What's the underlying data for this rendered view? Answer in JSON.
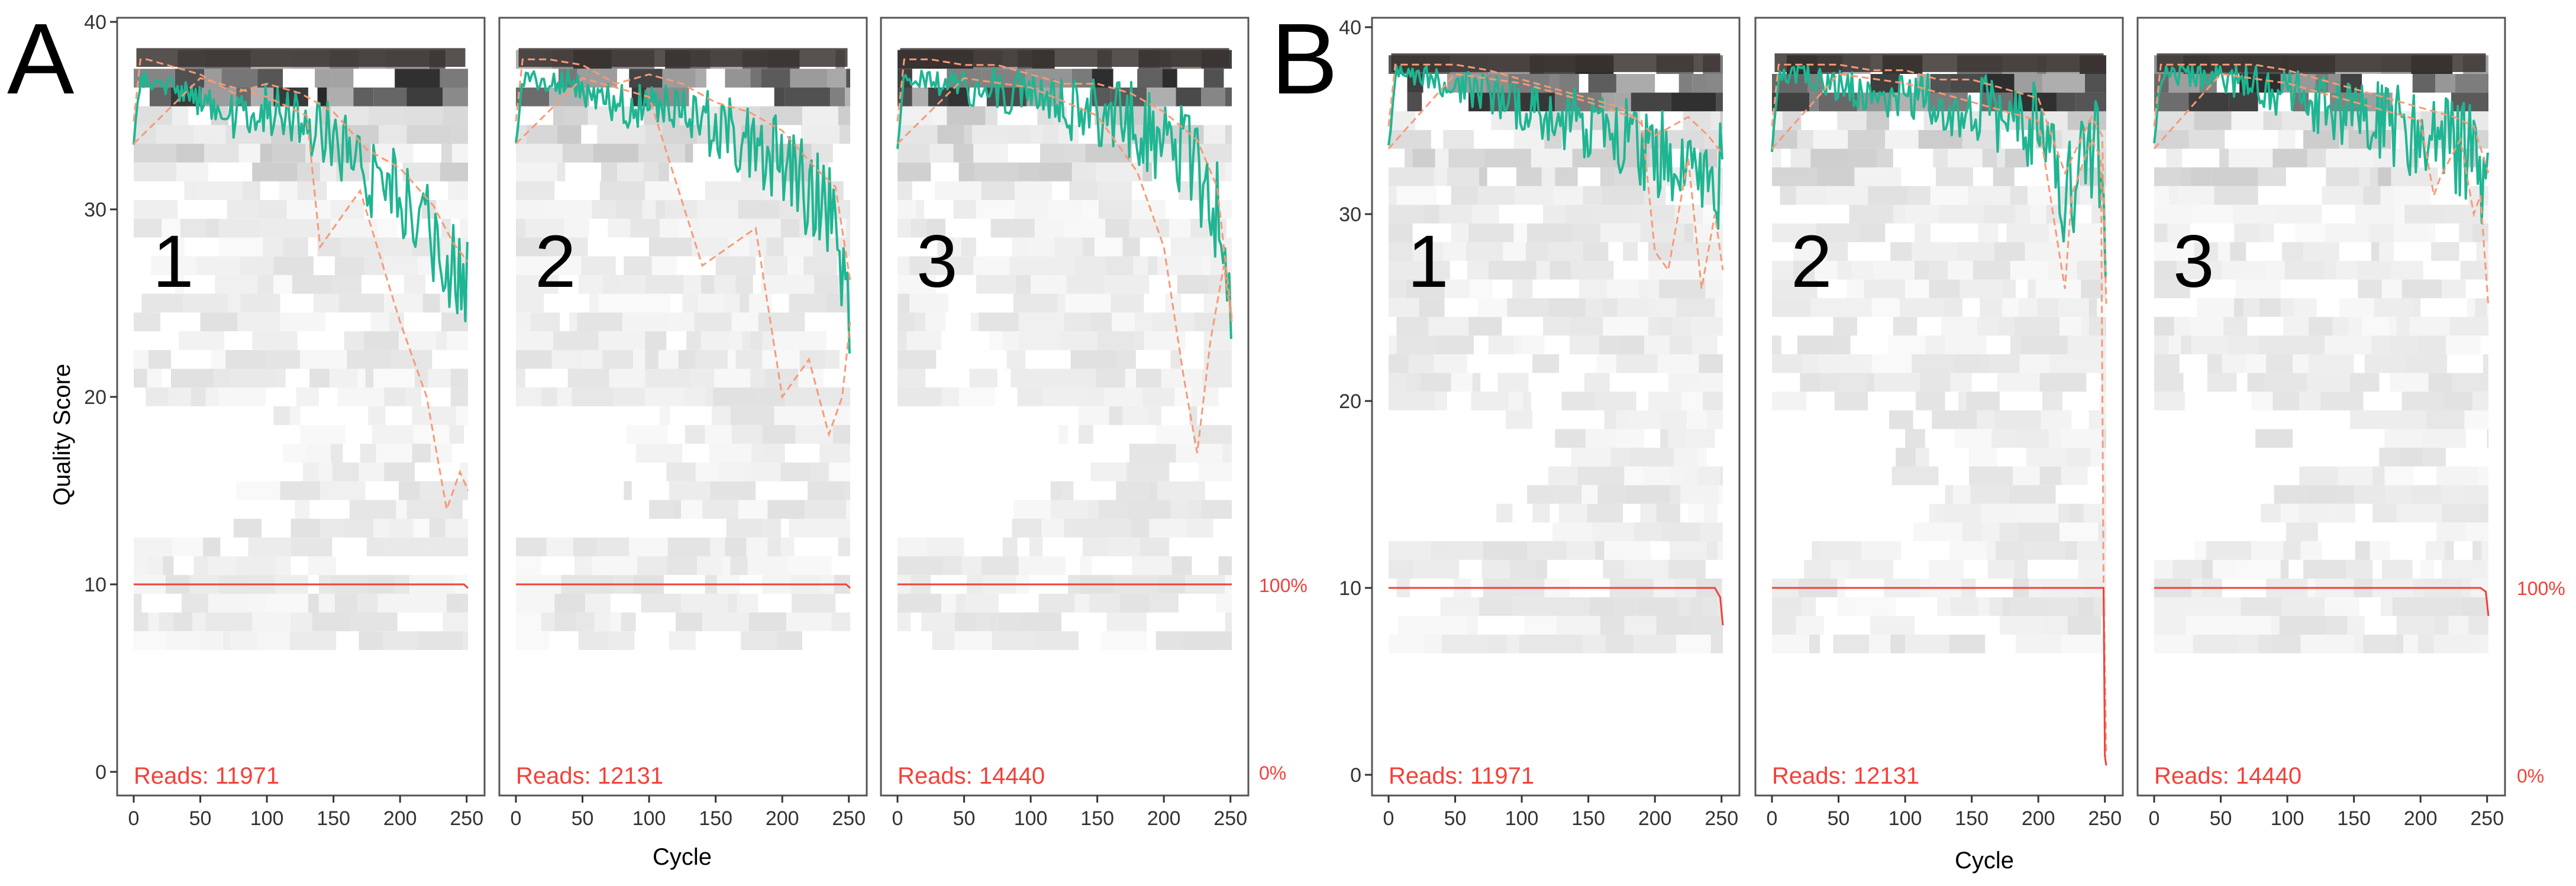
{
  "figure": {
    "panel_letters": [
      "A",
      "B"
    ],
    "y_axis_label": "Quality Score",
    "x_axis_label": "Cycle",
    "y_ticks": [
      "0",
      "10",
      "20",
      "30",
      "40"
    ],
    "x_ticks": [
      "0",
      "50",
      "100",
      "150",
      "200",
      "250"
    ],
    "right_labels": [
      "100%",
      "0%"
    ]
  },
  "colors": {
    "mean": "#1fb592",
    "quartile": "#f79a76",
    "cumulative": "#f2413a",
    "reads_text": "#f2413a",
    "frame": "#555555"
  },
  "chart_data": [
    {
      "type": "heatmap",
      "title": "",
      "group": "A",
      "panel_number": "1",
      "reads_label": "Reads:  11971",
      "xlabel": "Cycle",
      "ylabel": "Quality Score",
      "xlim": [
        0,
        251
      ],
      "ylim": [
        0,
        40
      ],
      "series": [
        {
          "name": "mean",
          "x": [
            0,
            5,
            10,
            25,
            50,
            75,
            100,
            125,
            150,
            175,
            200,
            225,
            240,
            251
          ],
          "values": [
            33.5,
            37,
            37,
            36.5,
            36,
            35,
            35.5,
            35,
            34,
            32,
            31,
            29,
            27,
            26
          ]
        },
        {
          "name": "quartile-min",
          "x": [
            0,
            50,
            100,
            130,
            140,
            170,
            200,
            220,
            235,
            245,
            251
          ],
          "values": [
            33.5,
            37,
            36,
            35,
            28,
            31,
            24,
            20,
            14,
            16,
            15
          ]
        },
        {
          "name": "cumulative",
          "x": [
            0,
            240,
            248,
            251
          ],
          "values": [
            10,
            10,
            10,
            9.8
          ]
        }
      ]
    },
    {
      "type": "heatmap",
      "title": "",
      "group": "A",
      "panel_number": "2",
      "reads_label": "Reads:  12131",
      "xlabel": "Cycle",
      "ylabel": "Quality Score",
      "xlim": [
        0,
        251
      ],
      "ylim": [
        0,
        40
      ],
      "series": [
        {
          "name": "mean",
          "x": [
            0,
            5,
            10,
            25,
            50,
            75,
            100,
            125,
            150,
            175,
            200,
            225,
            240,
            251
          ],
          "values": [
            33.5,
            37,
            37,
            37,
            36.5,
            35.5,
            36,
            35.5,
            34.5,
            34,
            33,
            31,
            30,
            25
          ]
        },
        {
          "name": "quartile-min",
          "x": [
            0,
            50,
            100,
            140,
            180,
            200,
            220,
            235,
            245,
            251
          ],
          "values": [
            33.5,
            37,
            36,
            27,
            29,
            20,
            22,
            18,
            20,
            24
          ]
        },
        {
          "name": "cumulative",
          "x": [
            0,
            240,
            248,
            251
          ],
          "values": [
            10,
            10,
            10,
            9.8
          ]
        }
      ]
    },
    {
      "type": "heatmap",
      "title": "",
      "group": "A",
      "panel_number": "3",
      "reads_label": "Reads:  14440",
      "xlabel": "Cycle",
      "ylabel": "Quality Score",
      "xlim": [
        0,
        251
      ],
      "ylim": [
        0,
        40
      ],
      "series": [
        {
          "name": "mean",
          "x": [
            0,
            5,
            10,
            25,
            50,
            75,
            100,
            125,
            150,
            175,
            200,
            225,
            240,
            251
          ],
          "values": [
            33.5,
            37,
            37,
            37,
            36.5,
            36.5,
            36,
            35.5,
            35.5,
            35,
            34,
            32.5,
            30,
            23
          ]
        },
        {
          "name": "quartile-min",
          "x": [
            0,
            50,
            100,
            150,
            180,
            200,
            215,
            225,
            235,
            245,
            251
          ],
          "values": [
            33.5,
            37,
            36.5,
            35,
            32,
            28,
            21,
            17,
            23,
            27,
            24
          ]
        },
        {
          "name": "cumulative",
          "x": [
            0,
            240,
            248,
            251
          ],
          "values": [
            10,
            10,
            10,
            10
          ]
        }
      ]
    },
    {
      "type": "heatmap",
      "title": "",
      "group": "B",
      "panel_number": "1",
      "reads_label": "Reads:  11971",
      "xlabel": "Cycle",
      "ylabel": "",
      "xlim": [
        0,
        251
      ],
      "ylim": [
        0,
        40
      ],
      "series": [
        {
          "name": "mean",
          "x": [
            0,
            5,
            10,
            25,
            50,
            75,
            100,
            125,
            150,
            175,
            200,
            225,
            240,
            251
          ],
          "values": [
            33.5,
            37.5,
            37.5,
            37.5,
            37,
            36.5,
            36,
            35.5,
            35,
            34.5,
            33,
            34,
            33,
            32
          ]
        },
        {
          "name": "quartile-min",
          "x": [
            0,
            50,
            100,
            150,
            190,
            200,
            210,
            225,
            235,
            245,
            251
          ],
          "values": [
            33.5,
            37.5,
            37,
            36,
            35,
            28,
            27,
            33,
            26,
            30,
            27
          ]
        },
        {
          "name": "cumulative",
          "x": [
            0,
            245,
            249,
            251
          ],
          "values": [
            10,
            10,
            9.5,
            8
          ]
        }
      ]
    },
    {
      "type": "heatmap",
      "title": "",
      "group": "B",
      "panel_number": "2",
      "reads_label": "Reads:  12131",
      "xlabel": "Cycle",
      "ylabel": "",
      "xlim": [
        0,
        251
      ],
      "ylim": [
        0,
        40
      ],
      "series": [
        {
          "name": "mean",
          "x": [
            0,
            5,
            10,
            25,
            50,
            75,
            100,
            125,
            150,
            175,
            200,
            220,
            240,
            248,
            251
          ],
          "values": [
            33.5,
            37.5,
            37.5,
            37.5,
            37,
            36.5,
            36.5,
            36,
            36,
            35.5,
            35,
            31,
            34,
            33,
            24
          ]
        },
        {
          "name": "quartile-min",
          "x": [
            0,
            50,
            100,
            150,
            200,
            220,
            225,
            240,
            247,
            249,
            251
          ],
          "values": [
            33.5,
            37.5,
            37,
            36,
            35,
            26,
            31,
            34,
            33,
            10,
            1
          ]
        },
        {
          "name": "cumulative",
          "x": [
            0,
            247,
            249,
            250,
            251
          ],
          "values": [
            10,
            10,
            10,
            1,
            0.5
          ]
        }
      ]
    },
    {
      "type": "heatmap",
      "title": "",
      "group": "B",
      "panel_number": "3",
      "reads_label": "Reads:  14440",
      "xlabel": "Cycle",
      "ylabel": "",
      "xlim": [
        0,
        251
      ],
      "ylim": [
        0,
        40
      ],
      "series": [
        {
          "name": "mean",
          "x": [
            0,
            5,
            10,
            25,
            50,
            75,
            100,
            125,
            150,
            175,
            200,
            225,
            240,
            251
          ],
          "values": [
            33.5,
            37.5,
            37.5,
            37.5,
            37.5,
            37,
            36.5,
            36,
            35.5,
            35,
            34.5,
            34,
            33.5,
            31
          ]
        },
        {
          "name": "quartile-min",
          "x": [
            0,
            50,
            100,
            150,
            200,
            210,
            215,
            230,
            240,
            245,
            251
          ],
          "values": [
            33.5,
            37.5,
            37,
            36,
            35,
            31,
            32,
            34,
            30,
            31,
            25
          ]
        },
        {
          "name": "cumulative",
          "x": [
            0,
            245,
            249,
            251
          ],
          "values": [
            10,
            10,
            9.8,
            8.5
          ]
        }
      ]
    }
  ]
}
